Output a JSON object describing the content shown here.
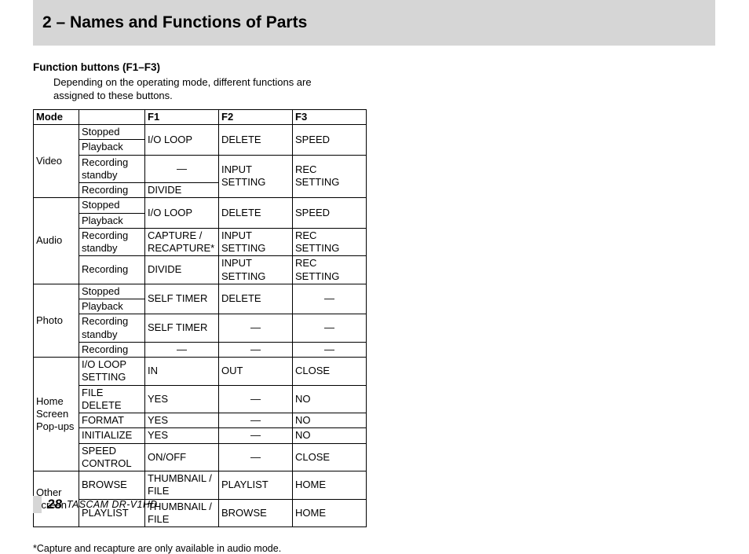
{
  "header": {
    "title": "2 – Names and Functions of Parts"
  },
  "section": {
    "subtitle": "Function buttons (F1–F3)",
    "description": "Depending on the operating mode, different functions are assigned to these buttons."
  },
  "table": {
    "headers": {
      "mode": "Mode",
      "sub": "",
      "f1": "F1",
      "f2": "F2",
      "f3": "F3"
    },
    "groups": [
      {
        "mode": "Video",
        "rows": [
          {
            "sub": "Stopped",
            "f1": "I/O LOOP",
            "f2": "DELETE",
            "f3": "SPEED",
            "merge_f1": 2,
            "merge_f2": 2,
            "merge_f3": 2
          },
          {
            "sub": "Playback"
          },
          {
            "sub": "Recording standby",
            "f1": "—",
            "f2": "INPUT SETTING",
            "f3": "REC SETTING",
            "merge_f2": 2,
            "merge_f3": 2,
            "f1_dash": true
          },
          {
            "sub": "Recording",
            "f1": "DIVIDE"
          }
        ]
      },
      {
        "mode": "Audio",
        "rows": [
          {
            "sub": "Stopped",
            "f1": "I/O LOOP",
            "f2": "DELETE",
            "f3": "SPEED",
            "merge_f1": 2,
            "merge_f2": 2,
            "merge_f3": 2
          },
          {
            "sub": "Playback"
          },
          {
            "sub": "Recording standby",
            "f1": "CAPTURE / RECAPTURE*",
            "f2": "INPUT SETTING",
            "f3": "REC SETTING"
          },
          {
            "sub": "Recording",
            "f1": "DIVIDE",
            "f2": "INPUT SETTING",
            "f3": "REC SETTING"
          }
        ]
      },
      {
        "mode": "Photo",
        "rows": [
          {
            "sub": "Stopped",
            "f1": "SELF TIMER",
            "f2": "DELETE",
            "f3": "—",
            "merge_f1": 2,
            "merge_f2": 2,
            "merge_f3": 2,
            "f3_dash": true
          },
          {
            "sub": "Playback"
          },
          {
            "sub": "Recording standby",
            "f1": "SELF TIMER",
            "f2": "—",
            "f3": "—",
            "f2_dash": true,
            "f3_dash": true
          },
          {
            "sub": "Recording",
            "f1": "—",
            "f2": "—",
            "f3": "—",
            "f1_dash": true,
            "f2_dash": true,
            "f3_dash": true
          }
        ]
      },
      {
        "mode": "Home Screen Pop-ups",
        "rows": [
          {
            "sub": "I/O LOOP SETTING",
            "f1": "IN",
            "f2": "OUT",
            "f3": "CLOSE"
          },
          {
            "sub": "FILE DELETE",
            "f1": "YES",
            "f2": "—",
            "f3": "NO",
            "f2_dash": true
          },
          {
            "sub": "FORMAT",
            "f1": "YES",
            "f2": "—",
            "f3": "NO",
            "f2_dash": true
          },
          {
            "sub": "INITIALIZE",
            "f1": "YES",
            "f2": "—",
            "f3": "NO",
            "f2_dash": true
          },
          {
            "sub": "SPEED CONTROL",
            "f1": "ON/OFF",
            "f2": "—",
            "f3": "CLOSE",
            "f2_dash": true
          }
        ]
      },
      {
        "mode": "Other screen",
        "rows": [
          {
            "sub": "BROWSE",
            "f1": "THUMBNAIL / FILE",
            "f2": "PLAYLIST",
            "f3": "HOME"
          },
          {
            "sub": "PLAYLIST",
            "f1": "THUMBNAIL / FILE",
            "f2": "BROWSE",
            "f3": "HOME"
          }
        ]
      }
    ]
  },
  "footnote": "*Capture and recapture are only available in audio mode.",
  "footer": {
    "page_num": "28",
    "model": "TASCAM  DR-V1HD"
  }
}
